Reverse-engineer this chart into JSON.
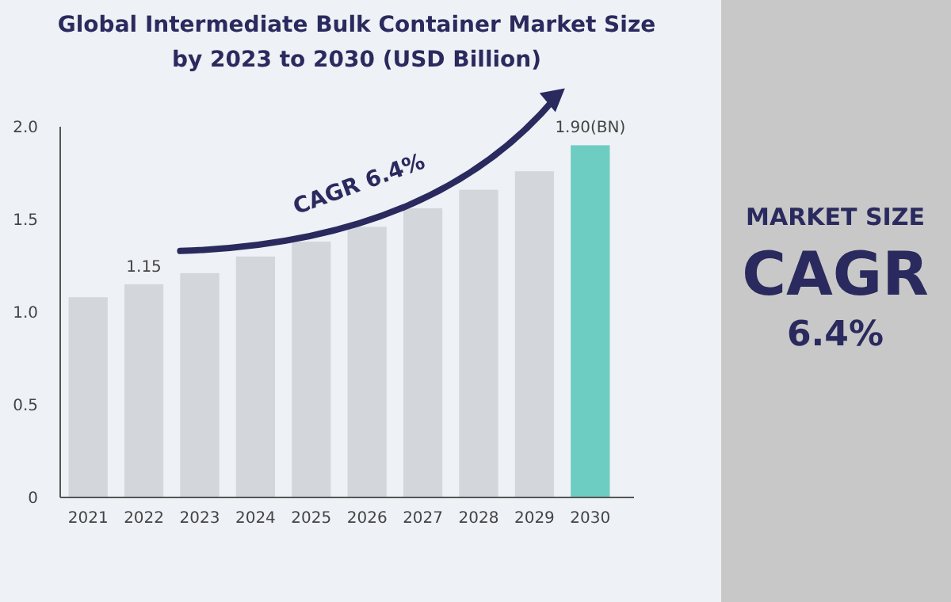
{
  "chart_data": [
    {
      "type": "bar",
      "title": "Global Intermediate Bulk Container Market Size by 2023 to 2030 (USD Billion)",
      "categories": [
        "2021",
        "2022",
        "2023",
        "2024",
        "2025",
        "2026",
        "2027",
        "2028",
        "2029",
        "2030"
      ],
      "values": [
        1.08,
        1.15,
        1.21,
        1.3,
        1.38,
        1.46,
        1.56,
        1.66,
        1.76,
        1.9
      ],
      "colors": [
        "#d3d7dc",
        "#d3d7dc",
        "#d3d7dc",
        "#d3d7dc",
        "#d3d7dc",
        "#d3d7dc",
        "#d3d7dc",
        "#d3d7dc",
        "#d3d7dc",
        "#6ecdc2"
      ],
      "value_labels": [
        null,
        "1.15",
        null,
        null,
        null,
        null,
        null,
        null,
        null,
        "1.90(BN)"
      ],
      "ylim": [
        0,
        2
      ],
      "yticks": [
        0,
        {
          "value": 0.5,
          "label": "0.5"
        },
        {
          "value": 1,
          "label": "1.0"
        },
        {
          "value": 1.5,
          "label": "1.5"
        },
        {
          "value": 2,
          "label": "2.0"
        }
      ],
      "annotations": [
        "CAGR 6.4%"
      ]
    },
    {
      "type": "other",
      "annotations": [
        "MARKET SIZE",
        "CAGR",
        "6.4%"
      ]
    }
  ]
}
